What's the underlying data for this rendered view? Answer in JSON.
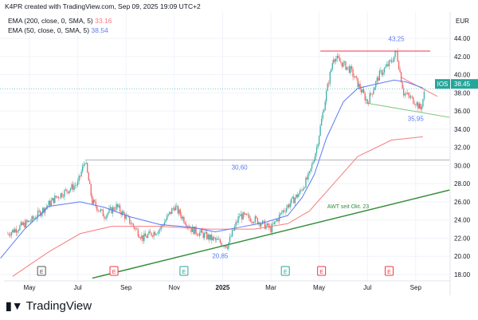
{
  "header": {
    "credit": "K4PR created with TradingView.com, Sep 09, 2025 19:09 UTC+2"
  },
  "legend": [
    {
      "label": "EMA (200, close, 0, SMA, 5)",
      "value": "33.16",
      "color": "#f77c80"
    },
    {
      "label": "EMA (50, close, 0, SMA, 5)",
      "value": "38.54",
      "color": "#5b7bf5"
    }
  ],
  "brand": {
    "name": "TradingView",
    "logo": "TV"
  },
  "chart_data": {
    "type": "candlestick",
    "symbol": "IOS",
    "currency": "EUR",
    "last_price": "38.45",
    "last_value": 38.45,
    "ylim": [
      17,
      45.5
    ],
    "yticks": [
      "18.00",
      "20.00",
      "22.00",
      "24.00",
      "26.00",
      "28.00",
      "30.00",
      "32.00",
      "34.00",
      "36.00",
      "38.00",
      "40.00",
      "42.00",
      "44.00"
    ],
    "xticks": [
      {
        "t": 0,
        "label": "May"
      },
      {
        "t": 2,
        "label": "Jul"
      },
      {
        "t": 4,
        "label": "Sep"
      },
      {
        "t": 6,
        "label": "Nov"
      },
      {
        "t": 8,
        "label": "2025"
      },
      {
        "t": 10,
        "label": "Mar"
      },
      {
        "t": 12,
        "label": "May"
      },
      {
        "t": 14,
        "label": "Jul"
      },
      {
        "t": 16,
        "label": "Sep"
      }
    ],
    "price_path": [
      [
        -0.9,
        22.5
      ],
      [
        0.1,
        24
      ],
      [
        1.1,
        26.5
      ],
      [
        2.0,
        28
      ],
      [
        2.3,
        30.6
      ],
      [
        2.6,
        26
      ],
      [
        3.1,
        24.5
      ],
      [
        3.6,
        25.5
      ],
      [
        4.1,
        24
      ],
      [
        4.7,
        22
      ],
      [
        5.4,
        23
      ],
      [
        6.0,
        25.5
      ],
      [
        6.7,
        23
      ],
      [
        7.5,
        22
      ],
      [
        8.2,
        21.2
      ],
      [
        8.7,
        24.5
      ],
      [
        9.4,
        24
      ],
      [
        10.0,
        23
      ],
      [
        10.5,
        25
      ],
      [
        11.2,
        27
      ],
      [
        11.6,
        29
      ],
      [
        11.9,
        32
      ],
      [
        12.3,
        38
      ],
      [
        12.6,
        42
      ],
      [
        13.3,
        40.5
      ],
      [
        13.8,
        38
      ],
      [
        14.0,
        37
      ],
      [
        14.5,
        40
      ],
      [
        15.0,
        41.5
      ],
      [
        15.2,
        42.5
      ],
      [
        15.5,
        38
      ],
      [
        16.0,
        37
      ],
      [
        16.2,
        36.2
      ],
      [
        16.4,
        38.45
      ]
    ],
    "ema50": [
      [
        -1.2,
        19.8
      ],
      [
        -0.2,
        23
      ],
      [
        0.8,
        25.5
      ],
      [
        2.1,
        26
      ],
      [
        3.1,
        25.4
      ],
      [
        4.1,
        24.4
      ],
      [
        5.4,
        23.5
      ],
      [
        6.7,
        23.2
      ],
      [
        7.7,
        22.7
      ],
      [
        8.7,
        23.2
      ],
      [
        9.7,
        23.7
      ],
      [
        10.7,
        24.5
      ],
      [
        11.3,
        26.5
      ],
      [
        11.8,
        29
      ],
      [
        12.3,
        33
      ],
      [
        13.0,
        37
      ],
      [
        13.6,
        38.5
      ],
      [
        14.6,
        39.1
      ],
      [
        15.1,
        39.4
      ],
      [
        15.6,
        39.2
      ],
      [
        16.3,
        38.54
      ]
    ],
    "ema200": [
      [
        -0.7,
        17.8
      ],
      [
        0.8,
        20.5
      ],
      [
        2.1,
        22.5
      ],
      [
        3.4,
        23.3
      ],
      [
        5.4,
        23.3
      ],
      [
        7.4,
        23
      ],
      [
        9.3,
        23
      ],
      [
        10.7,
        23.6
      ],
      [
        11.6,
        25
      ],
      [
        12.6,
        28
      ],
      [
        13.6,
        31
      ],
      [
        15.0,
        32.8
      ],
      [
        16.3,
        33.16
      ]
    ],
    "annotations": [
      {
        "text": "43,25",
        "t": 15.2,
        "price": 43.25
      },
      {
        "text": "35,95",
        "t": 16.0,
        "price": 35.95
      },
      {
        "text": "30,60",
        "t": 8.7,
        "price": 30.6
      },
      {
        "text": "20,85",
        "t": 7.9,
        "price": 20.85
      },
      {
        "text": "AWT seit Okt. 23",
        "t": 13.2,
        "price": 25.3
      }
    ],
    "lines": [
      {
        "name": "resistance",
        "color": "#f23645",
        "p": [
          [
            12.05,
            42.6
          ],
          [
            16.6,
            42.6
          ]
        ]
      },
      {
        "name": "awt-support",
        "color": "#388e3c",
        "p": [
          [
            2.6,
            17.6
          ],
          [
            17.4,
            27.3
          ]
        ]
      },
      {
        "name": "breakout-level",
        "color": "#b2b5be",
        "p": [
          [
            2.3,
            30.6
          ],
          [
            17.4,
            30.6
          ]
        ]
      },
      {
        "name": "lower-wedge",
        "color": "#81c784",
        "p": [
          [
            13.9,
            36.9
          ],
          [
            17.4,
            35.3
          ]
        ]
      },
      {
        "name": "upper-wedge",
        "color": "#f77c80",
        "p": [
          [
            15.4,
            39.7
          ],
          [
            16.9,
            37.6
          ]
        ]
      }
    ],
    "events": [
      {
        "t": 0.5,
        "label": "E",
        "color": "#555"
      },
      {
        "t": 3.5,
        "label": "E",
        "color": "#f23645"
      },
      {
        "t": 6.4,
        "label": "E",
        "color": "#26a69a"
      },
      {
        "t": 10.6,
        "label": "E",
        "color": "#26a69a"
      },
      {
        "t": 12.1,
        "label": "E",
        "color": "#f23645"
      },
      {
        "t": 14.9,
        "label": "E",
        "color": "#f23645"
      }
    ]
  }
}
